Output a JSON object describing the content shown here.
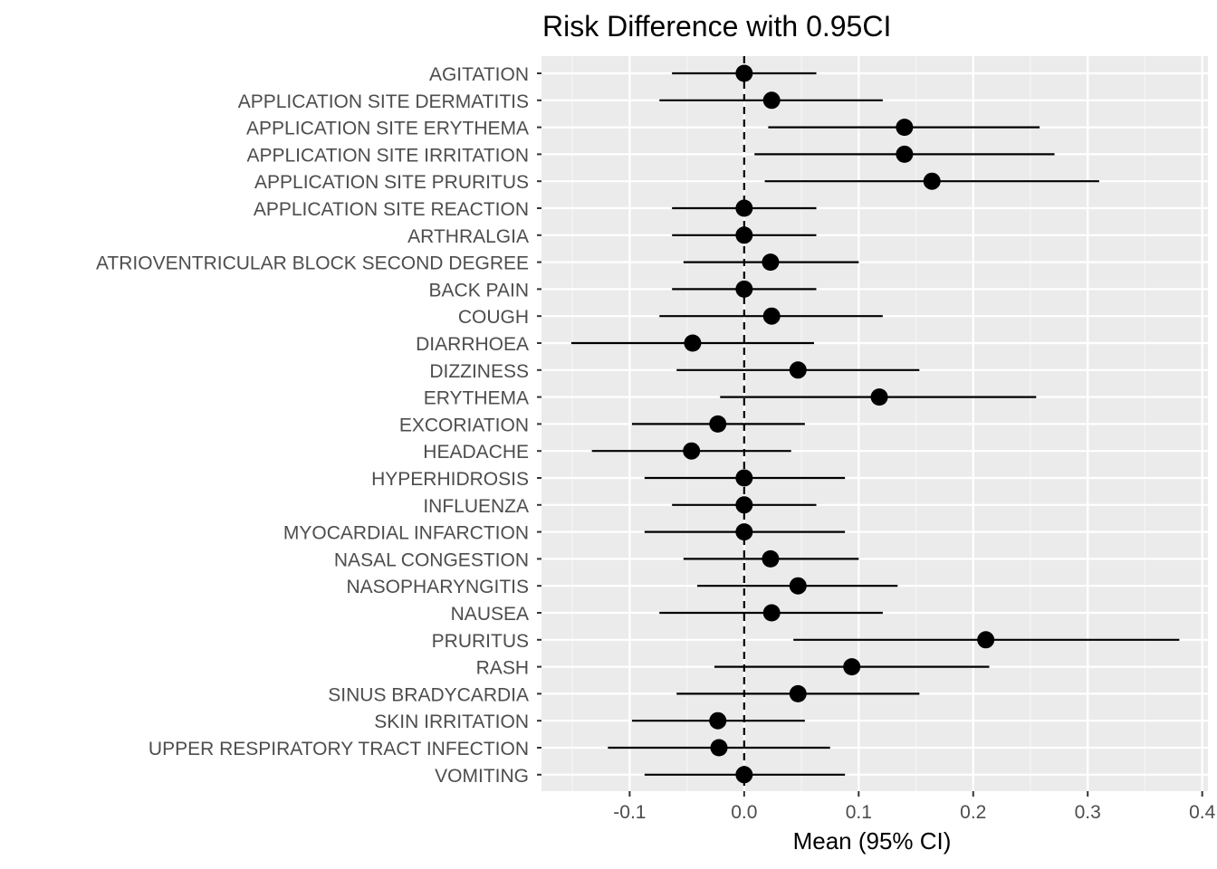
{
  "chart_data": {
    "type": "scatter",
    "title": "Risk Difference with 0.95CI",
    "xlabel": "Mean (95% CI)",
    "ylabel": "",
    "xlim": [
      -0.177,
      0.405
    ],
    "xticks": [
      -0.1,
      0.0,
      0.1,
      0.2,
      0.3,
      0.4
    ],
    "xtick_labels": [
      "-0.1",
      "0.0",
      "0.1",
      "0.2",
      "0.3",
      "0.4"
    ],
    "reference_line": 0.0,
    "grid": true,
    "legend": "none",
    "categories": [
      "AGITATION",
      "APPLICATION SITE DERMATITIS",
      "APPLICATION SITE ERYTHEMA",
      "APPLICATION SITE IRRITATION",
      "APPLICATION SITE PRURITUS",
      "APPLICATION SITE REACTION",
      "ARTHRALGIA",
      "ATRIOVENTRICULAR BLOCK SECOND DEGREE",
      "BACK PAIN",
      "COUGH",
      "DIARRHOEA",
      "DIZZINESS",
      "ERYTHEMA",
      "EXCORIATION",
      "HEADACHE",
      "HYPERHIDROSIS",
      "INFLUENZA",
      "MYOCARDIAL INFARCTION",
      "NASAL CONGESTION",
      "NASOPHARYNGITIS",
      "NAUSEA",
      "PRURITUS",
      "RASH",
      "SINUS BRADYCARDIA",
      "SKIN IRRITATION",
      "UPPER RESPIRATORY TRACT INFECTION",
      "VOMITING"
    ],
    "mean": [
      0.0,
      0.024,
      0.14,
      0.14,
      0.164,
      0.0,
      0.0,
      0.023,
      0.0,
      0.024,
      -0.045,
      0.047,
      0.118,
      -0.023,
      -0.046,
      0.0,
      0.0,
      0.0,
      0.023,
      0.047,
      0.024,
      0.211,
      0.094,
      0.047,
      -0.023,
      -0.022,
      0.0
    ],
    "lower": [
      -0.063,
      -0.074,
      0.021,
      0.009,
      0.018,
      -0.063,
      -0.063,
      -0.053,
      -0.063,
      -0.074,
      -0.151,
      -0.059,
      -0.021,
      -0.098,
      -0.133,
      -0.087,
      -0.063,
      -0.087,
      -0.053,
      -0.041,
      -0.074,
      0.043,
      -0.026,
      -0.059,
      -0.098,
      -0.119,
      -0.087
    ],
    "upper": [
      0.063,
      0.121,
      0.258,
      0.271,
      0.31,
      0.063,
      0.063,
      0.1,
      0.063,
      0.121,
      0.061,
      0.153,
      0.255,
      0.053,
      0.041,
      0.088,
      0.063,
      0.088,
      0.1,
      0.134,
      0.121,
      0.38,
      0.214,
      0.153,
      0.053,
      0.075,
      0.088
    ],
    "colors": {
      "panel_background": "#ebebeb",
      "grid_major": "#ffffff",
      "grid_minor": "#f5f5f5",
      "point": "#000000",
      "errorbar": "#000000",
      "reference_line": "#000000",
      "tick_text": "#4d4d4d"
    }
  }
}
